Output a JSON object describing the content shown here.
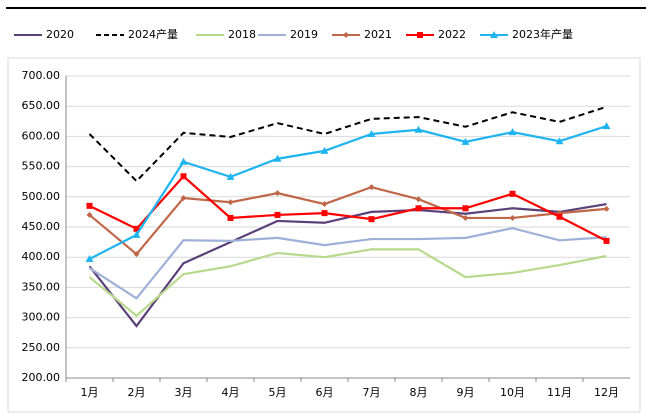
{
  "chart_data": {
    "type": "line",
    "categories": [
      "1月",
      "2月",
      "3月",
      "4月",
      "5月",
      "6月",
      "7月",
      "8月",
      "9月",
      "10月",
      "11月",
      "12月"
    ],
    "ylim": [
      200,
      700
    ],
    "yticks": [
      {
        "value": 200,
        "label": "200.00"
      },
      {
        "value": 250,
        "label": "250.00"
      },
      {
        "value": 300,
        "label": "300.00"
      },
      {
        "value": 350,
        "label": "350.00"
      },
      {
        "value": 400,
        "label": "400.00"
      },
      {
        "value": 450,
        "label": "450.00"
      },
      {
        "value": 500,
        "label": "500.00"
      },
      {
        "value": 550,
        "label": "550.00"
      },
      {
        "value": 600,
        "label": "600.00"
      },
      {
        "value": 650,
        "label": "650.00"
      },
      {
        "value": 700,
        "label": "700.00"
      }
    ],
    "grid": true,
    "legend": "top",
    "series": [
      {
        "name": "2020",
        "color": "#5b3f78",
        "values": [
          385,
          286,
          390,
          425,
          460,
          457,
          475,
          478,
          472,
          481,
          475,
          488
        ]
      },
      {
        "name": "2024产量",
        "color": "#000000",
        "dash": true,
        "values": [
          604,
          526,
          606,
          599,
          622,
          604,
          629,
          632,
          616,
          640,
          624,
          649
        ]
      },
      {
        "name": "2018",
        "color": "#b7d98b",
        "values": [
          367,
          303,
          372,
          385,
          407,
          400,
          413,
          413,
          367,
          374,
          387,
          402
        ]
      },
      {
        "name": "2019",
        "color": "#9fb0d8",
        "values": [
          382,
          332,
          428,
          427,
          432,
          420,
          430,
          430,
          432,
          448,
          428,
          433
        ]
      },
      {
        "name": "2021",
        "color": "#c0674a",
        "marker": "diamond",
        "values": [
          470,
          405,
          498,
          491,
          506,
          488,
          516,
          496,
          465,
          465,
          473,
          480
        ]
      },
      {
        "name": "2022",
        "color": "#ff0000",
        "marker": "square",
        "values": [
          485,
          447,
          534,
          465,
          470,
          473,
          463,
          481,
          481,
          505,
          467,
          427
        ]
      },
      {
        "name": "2023年产量",
        "color": "#1fb4f0",
        "marker": "triangle",
        "values": [
          397,
          437,
          558,
          533,
          563,
          576,
          604,
          611,
          591,
          607,
          592,
          617
        ]
      }
    ]
  }
}
